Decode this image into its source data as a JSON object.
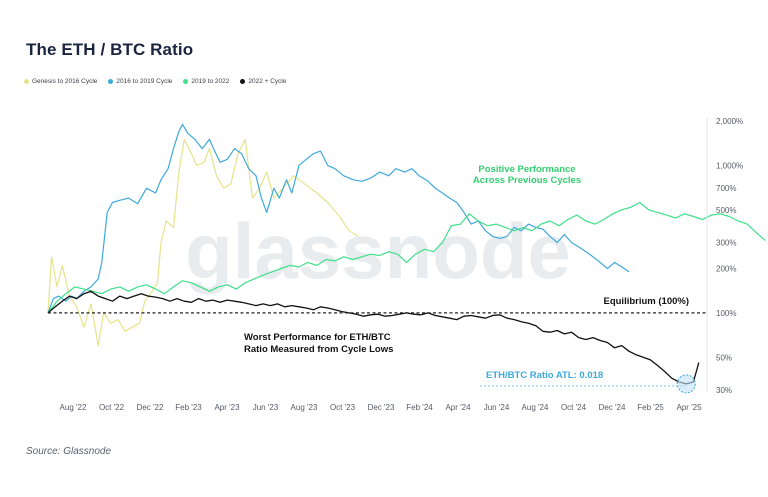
{
  "title": "The ETH / BTC Ratio",
  "source": "Source: Glassnode",
  "watermark": "glassnode",
  "colors": {
    "genesis": "#e6e48a",
    "c2016": "#3ea9dc",
    "c2019": "#3ee08a",
    "c2022": "#111111",
    "ath_line": "#7fc5ea",
    "positive_text": "#33cf70"
  },
  "legend": [
    {
      "label": "Genesis to 2016 Cycle",
      "color": "#e6e48a"
    },
    {
      "label": "2016 to 2019 Cycle",
      "color": "#3ea9dc"
    },
    {
      "label": "2019 to 2022",
      "color": "#3ee08a"
    },
    {
      "label": "2022 + Cycle",
      "color": "#111111"
    }
  ],
  "annotations": {
    "positive_line1": "Positive Performance",
    "positive_line2": "Across Previous Cycles",
    "equilibrium": "Equilibrium (100%)",
    "worst_line1": "Worst Performance for ETH/BTC",
    "worst_line2": "Ratio Measured from Cycle Lows",
    "atl": "ETH/BTC Ratio ATL: 0.018"
  },
  "chart_data": {
    "type": "line",
    "title": "The ETH / BTC Ratio",
    "x_ticks": [
      "Aug '22",
      "Oct '22",
      "Dec '22",
      "Feb '23",
      "Apr '23",
      "Jun '23",
      "Aug '23",
      "Oct '23",
      "Dec '23",
      "Feb '24",
      "Apr '24",
      "Jun '24",
      "Aug '24",
      "Oct '24",
      "Dec '24",
      "Feb '25",
      "Apr '25"
    ],
    "y_ticks": [
      {
        "value": 30,
        "label": "30%"
      },
      {
        "value": 50,
        "label": "50%"
      },
      {
        "value": 100,
        "label": "100%"
      },
      {
        "value": 200,
        "label": "200%"
      },
      {
        "value": 300,
        "label": "300%"
      },
      {
        "value": 500,
        "label": "500%"
      },
      {
        "value": 700,
        "label": "700%"
      },
      {
        "value": 1000,
        "label": "1,000%"
      },
      {
        "value": 2000,
        "label": "2,000%"
      }
    ],
    "y_scale": "log",
    "x_unit": "months since cycle low (Jul '22 = 0)",
    "equilibrium": 100,
    "series": [
      {
        "name": "Genesis to 2016 Cycle",
        "points": [
          [
            0,
            100
          ],
          [
            0.2,
            240
          ],
          [
            0.5,
            150
          ],
          [
            0.8,
            210
          ],
          [
            1.2,
            130
          ],
          [
            1.6,
            110
          ],
          [
            2,
            80
          ],
          [
            2.4,
            115
          ],
          [
            2.8,
            60
          ],
          [
            3.1,
            100
          ],
          [
            3.5,
            85
          ],
          [
            3.9,
            90
          ],
          [
            4.3,
            75
          ],
          [
            4.7,
            80
          ],
          [
            5.1,
            85
          ],
          [
            5.4,
            120
          ],
          [
            5.8,
            140
          ],
          [
            6.1,
            160
          ],
          [
            6.3,
            300
          ],
          [
            6.6,
            420
          ],
          [
            7,
            380
          ],
          [
            7.3,
            900
          ],
          [
            7.6,
            1500
          ],
          [
            8,
            1200
          ],
          [
            8.3,
            1000
          ],
          [
            8.7,
            1050
          ],
          [
            9,
            1300
          ],
          [
            9.4,
            850
          ],
          [
            9.8,
            700
          ],
          [
            10.2,
            750
          ],
          [
            10.6,
            1200
          ],
          [
            11,
            1500
          ],
          [
            11.4,
            600
          ],
          [
            11.8,
            700
          ],
          [
            12.2,
            900
          ],
          [
            12.6,
            600
          ],
          [
            13.1,
            700
          ],
          [
            13.7,
            850
          ],
          [
            14.3,
            750
          ],
          [
            15,
            650
          ],
          [
            15.6,
            560
          ],
          [
            16.2,
            460
          ],
          [
            16.8,
            360
          ],
          [
            17.3,
            330
          ]
        ]
      },
      {
        "name": "2016 to 2019 Cycle",
        "points": [
          [
            0,
            100
          ],
          [
            0.3,
            125
          ],
          [
            0.6,
            130
          ],
          [
            1,
            120
          ],
          [
            1.3,
            130
          ],
          [
            1.6,
            125
          ],
          [
            2,
            140
          ],
          [
            2.4,
            150
          ],
          [
            2.8,
            170
          ],
          [
            3,
            220
          ],
          [
            3.3,
            480
          ],
          [
            3.6,
            560
          ],
          [
            4,
            580
          ],
          [
            4.5,
            600
          ],
          [
            5,
            550
          ],
          [
            5.5,
            700
          ],
          [
            6,
            650
          ],
          [
            6.3,
            800
          ],
          [
            6.7,
            950
          ],
          [
            7,
            1300
          ],
          [
            7.3,
            1700
          ],
          [
            7.5,
            1900
          ],
          [
            7.8,
            1650
          ],
          [
            8.2,
            1500
          ],
          [
            8.6,
            1300
          ],
          [
            9,
            1500
          ],
          [
            9.3,
            1250
          ],
          [
            9.6,
            1050
          ],
          [
            10,
            1100
          ],
          [
            10.4,
            1300
          ],
          [
            10.8,
            1200
          ],
          [
            11.2,
            950
          ],
          [
            11.6,
            850
          ],
          [
            11.9,
            600
          ],
          [
            12.2,
            480
          ],
          [
            12.6,
            700
          ],
          [
            12.9,
            600
          ],
          [
            13.3,
            800
          ],
          [
            13.6,
            650
          ],
          [
            14,
            1000
          ],
          [
            14.4,
            1100
          ],
          [
            14.8,
            1200
          ],
          [
            15.2,
            1250
          ],
          [
            15.6,
            1000
          ],
          [
            16,
            950
          ],
          [
            16.5,
            850
          ],
          [
            17,
            800
          ],
          [
            17.5,
            780
          ],
          [
            18,
            820
          ],
          [
            18.5,
            900
          ],
          [
            19,
            850
          ],
          [
            19.4,
            950
          ],
          [
            19.9,
            900
          ],
          [
            20.3,
            950
          ],
          [
            20.7,
            850
          ],
          [
            21.2,
            780
          ],
          [
            21.6,
            700
          ],
          [
            22,
            650
          ],
          [
            22.4,
            600
          ],
          [
            22.8,
            560
          ],
          [
            23.2,
            480
          ],
          [
            23.6,
            400
          ],
          [
            24,
            420
          ],
          [
            24.4,
            360
          ],
          [
            24.8,
            330
          ],
          [
            25.2,
            320
          ],
          [
            25.6,
            330
          ],
          [
            26,
            380
          ],
          [
            26.4,
            360
          ],
          [
            26.8,
            400
          ],
          [
            27.2,
            380
          ],
          [
            27.6,
            370
          ],
          [
            28,
            330
          ],
          [
            28.4,
            300
          ],
          [
            28.8,
            340
          ],
          [
            29.2,
            300
          ],
          [
            29.6,
            280
          ],
          [
            30,
            260
          ],
          [
            30.4,
            240
          ],
          [
            30.8,
            220
          ],
          [
            31.2,
            200
          ],
          [
            31.6,
            220
          ],
          [
            32,
            205
          ],
          [
            32.4,
            190
          ]
        ]
      },
      {
        "name": "2019 to 2022",
        "points": [
          [
            0,
            100
          ],
          [
            0.5,
            120
          ],
          [
            1,
            135
          ],
          [
            1.5,
            150
          ],
          [
            2,
            145
          ],
          [
            2.5,
            140
          ],
          [
            3,
            135
          ],
          [
            3.5,
            145
          ],
          [
            4,
            150
          ],
          [
            4.5,
            140
          ],
          [
            5,
            150
          ],
          [
            5.5,
            155
          ],
          [
            6,
            145
          ],
          [
            6.5,
            135
          ],
          [
            7,
            150
          ],
          [
            7.5,
            165
          ],
          [
            8,
            160
          ],
          [
            8.5,
            150
          ],
          [
            9,
            140
          ],
          [
            9.5,
            150
          ],
          [
            10,
            155
          ],
          [
            10.5,
            145
          ],
          [
            11,
            160
          ],
          [
            11.5,
            170
          ],
          [
            12,
            180
          ],
          [
            12.5,
            190
          ],
          [
            13,
            200
          ],
          [
            13.5,
            210
          ],
          [
            14,
            205
          ],
          [
            14.5,
            220
          ],
          [
            15,
            210
          ],
          [
            15.5,
            230
          ],
          [
            16,
            225
          ],
          [
            16.5,
            240
          ],
          [
            17,
            230
          ],
          [
            17.5,
            240
          ],
          [
            18,
            250
          ],
          [
            18.5,
            245
          ],
          [
            19,
            260
          ],
          [
            19.5,
            250
          ],
          [
            20,
            220
          ],
          [
            20.5,
            250
          ],
          [
            21,
            270
          ],
          [
            21.5,
            260
          ],
          [
            22,
            300
          ],
          [
            22.5,
            390
          ],
          [
            23,
            400
          ],
          [
            23.5,
            470
          ],
          [
            24,
            420
          ],
          [
            24.5,
            390
          ],
          [
            25,
            400
          ],
          [
            25.5,
            380
          ],
          [
            26,
            360
          ],
          [
            26.5,
            380
          ],
          [
            27,
            360
          ],
          [
            27.5,
            400
          ],
          [
            28,
            420
          ],
          [
            28.5,
            390
          ],
          [
            29,
            430
          ],
          [
            29.5,
            460
          ],
          [
            30,
            420
          ],
          [
            30.5,
            400
          ],
          [
            31,
            430
          ],
          [
            31.5,
            470
          ],
          [
            32,
            500
          ],
          [
            32.5,
            520
          ],
          [
            33,
            560
          ],
          [
            33.5,
            500
          ],
          [
            34,
            480
          ],
          [
            34.5,
            460
          ],
          [
            35,
            440
          ],
          [
            35.5,
            470
          ],
          [
            36,
            450
          ],
          [
            36.5,
            430
          ],
          [
            37,
            460
          ],
          [
            37.5,
            470
          ],
          [
            38,
            450
          ],
          [
            38.5,
            420
          ],
          [
            39,
            400
          ],
          [
            39.5,
            350
          ],
          [
            40,
            310
          ]
        ]
      },
      {
        "name": "2022 + Cycle",
        "points": [
          [
            0,
            100
          ],
          [
            0.4,
            110
          ],
          [
            0.8,
            120
          ],
          [
            1.2,
            130
          ],
          [
            1.6,
            125
          ],
          [
            2,
            135
          ],
          [
            2.4,
            140
          ],
          [
            2.8,
            130
          ],
          [
            3.2,
            125
          ],
          [
            3.6,
            120
          ],
          [
            4,
            130
          ],
          [
            4.4,
            125
          ],
          [
            4.8,
            130
          ],
          [
            5.2,
            135
          ],
          [
            5.6,
            130
          ],
          [
            6,
            128
          ],
          [
            6.4,
            125
          ],
          [
            6.8,
            120
          ],
          [
            7.2,
            125
          ],
          [
            7.6,
            120
          ],
          [
            8,
            118
          ],
          [
            8.4,
            125
          ],
          [
            8.8,
            120
          ],
          [
            9.2,
            122
          ],
          [
            9.6,
            118
          ],
          [
            10,
            122
          ],
          [
            10.4,
            120
          ],
          [
            10.8,
            118
          ],
          [
            11.2,
            115
          ],
          [
            11.6,
            112
          ],
          [
            12,
            115
          ],
          [
            12.4,
            112
          ],
          [
            12.8,
            115
          ],
          [
            13.2,
            110
          ],
          [
            13.6,
            112
          ],
          [
            14,
            110
          ],
          [
            14.4,
            108
          ],
          [
            14.8,
            105
          ],
          [
            15.2,
            110
          ],
          [
            15.6,
            108
          ],
          [
            16,
            105
          ],
          [
            16.4,
            102
          ],
          [
            16.8,
            100
          ],
          [
            17.2,
            98
          ],
          [
            17.6,
            95
          ],
          [
            18,
            97
          ],
          [
            18.4,
            98
          ],
          [
            18.8,
            95
          ],
          [
            19.2,
            96
          ],
          [
            19.6,
            98
          ],
          [
            20,
            100
          ],
          [
            20.4,
            98
          ],
          [
            20.8,
            97
          ],
          [
            21.2,
            100
          ],
          [
            21.6,
            96
          ],
          [
            22,
            94
          ],
          [
            22.4,
            92
          ],
          [
            22.8,
            90
          ],
          [
            23.2,
            95
          ],
          [
            23.6,
            96
          ],
          [
            24,
            94
          ],
          [
            24.4,
            92
          ],
          [
            24.8,
            96
          ],
          [
            25.2,
            97
          ],
          [
            25.6,
            92
          ],
          [
            26,
            90
          ],
          [
            26.4,
            87
          ],
          [
            26.8,
            85
          ],
          [
            27.2,
            82
          ],
          [
            27.6,
            75
          ],
          [
            28,
            74
          ],
          [
            28.4,
            76
          ],
          [
            28.8,
            72
          ],
          [
            29.2,
            74
          ],
          [
            29.6,
            68
          ],
          [
            30,
            66
          ],
          [
            30.4,
            68
          ],
          [
            30.8,
            65
          ],
          [
            31.2,
            63
          ],
          [
            31.6,
            58
          ],
          [
            32,
            60
          ],
          [
            32.4,
            55
          ],
          [
            32.8,
            52
          ],
          [
            33.2,
            50
          ],
          [
            33.6,
            48
          ],
          [
            34,
            44
          ],
          [
            34.4,
            40
          ],
          [
            34.8,
            36
          ],
          [
            35.2,
            34
          ],
          [
            35.6,
            33
          ],
          [
            36,
            34
          ],
          [
            36.3,
            46
          ]
        ]
      }
    ],
    "atl_point": [
      35.6,
      33
    ]
  }
}
